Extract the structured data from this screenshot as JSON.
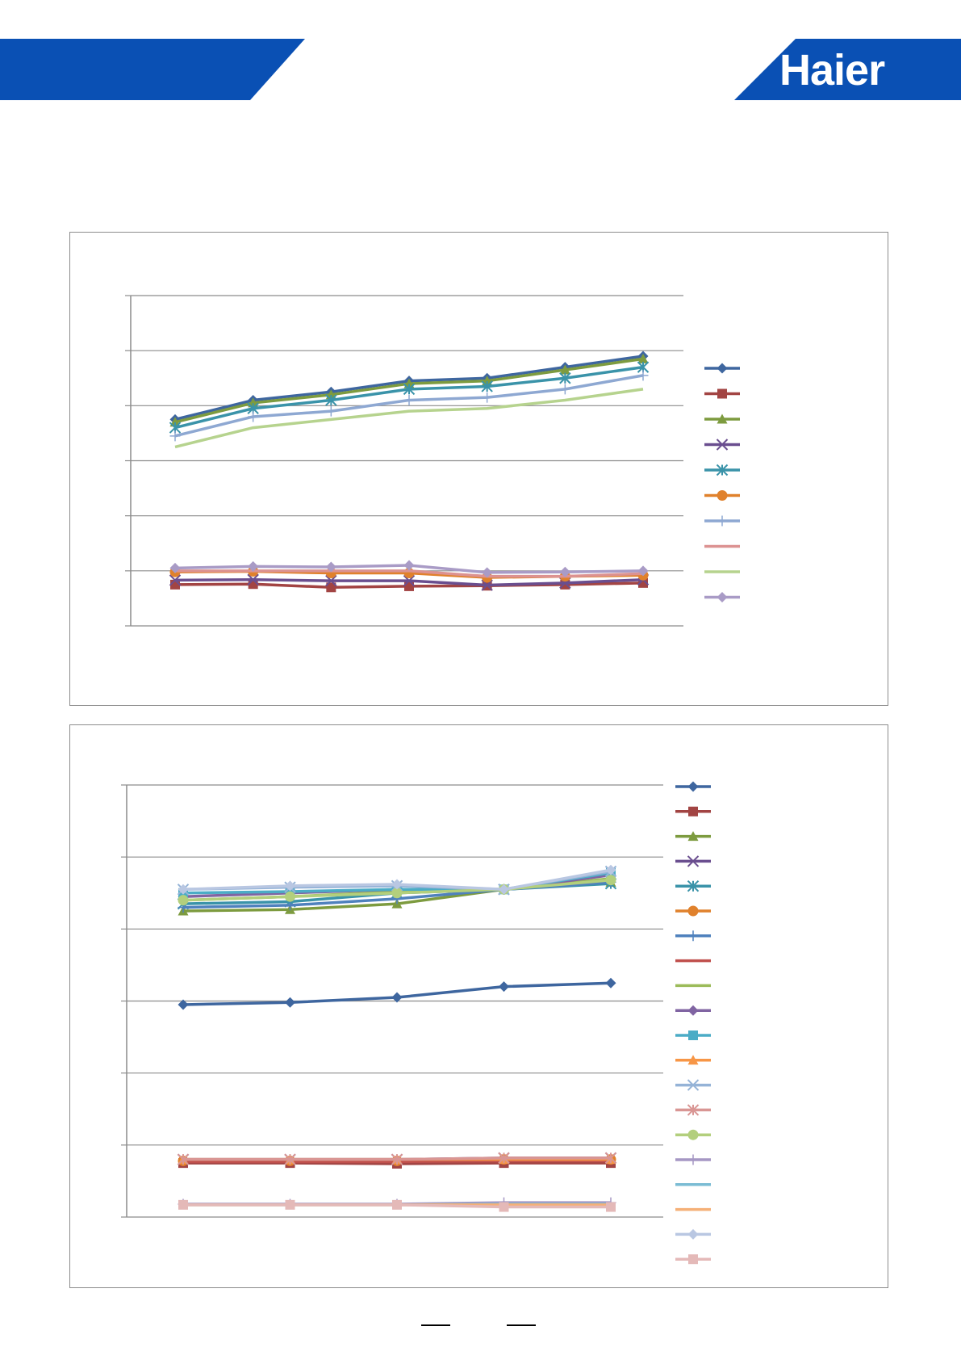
{
  "brand": {
    "name": "Haier",
    "color": "#0a50b4"
  },
  "chart_data": [
    {
      "type": "line",
      "x": [
        1,
        2,
        3,
        4,
        5,
        6,
        7
      ],
      "ylim": [
        0,
        6
      ],
      "grid": true,
      "legend": "right",
      "series": [
        {
          "color": "#3e669f",
          "marker": "diamond",
          "values": [
            3.75,
            4.1,
            4.25,
            4.45,
            4.5,
            4.7,
            4.9
          ]
        },
        {
          "color": "#a24443",
          "marker": "square",
          "values": [
            0.75,
            0.76,
            0.7,
            0.72,
            0.73,
            0.75,
            0.78
          ]
        },
        {
          "color": "#7d9b3f",
          "marker": "triangle",
          "values": [
            3.7,
            4.05,
            4.2,
            4.4,
            4.45,
            4.65,
            4.85
          ]
        },
        {
          "color": "#6a4e8f",
          "marker": "x",
          "values": [
            0.83,
            0.84,
            0.82,
            0.82,
            0.74,
            0.78,
            0.84
          ]
        },
        {
          "color": "#3a93a9",
          "marker": "star",
          "values": [
            3.6,
            3.95,
            4.1,
            4.3,
            4.35,
            4.5,
            4.7
          ]
        },
        {
          "color": "#e0812c",
          "marker": "circle",
          "values": [
            0.98,
            0.99,
            0.96,
            0.96,
            0.88,
            0.9,
            0.92
          ]
        },
        {
          "color": "#8ea8d2",
          "marker": "plus",
          "values": [
            3.45,
            3.8,
            3.9,
            4.1,
            4.15,
            4.3,
            4.55
          ]
        },
        {
          "color": "#dc9291",
          "marker": "none",
          "values": [
            1.0,
            1.0,
            1.0,
            1.0,
            0.9,
            0.9,
            0.95
          ]
        },
        {
          "color": "#b6d38e",
          "marker": "none",
          "values": [
            3.25,
            3.6,
            3.75,
            3.9,
            3.95,
            4.1,
            4.3
          ]
        },
        {
          "color": "#a99bc6",
          "marker": "diamond",
          "values": [
            1.05,
            1.08,
            1.07,
            1.1,
            0.97,
            0.98,
            1.0
          ]
        }
      ]
    },
    {
      "type": "line",
      "x": [
        1,
        2,
        3,
        4,
        5
      ],
      "ylim": [
        0,
        6
      ],
      "grid": true,
      "legend": "right",
      "series": [
        {
          "color": "#3e669f",
          "marker": "diamond",
          "values": [
            2.95,
            2.98,
            3.05,
            3.2,
            3.25
          ]
        },
        {
          "color": "#a24443",
          "marker": "square",
          "values": [
            0.75,
            0.75,
            0.74,
            0.75,
            0.75
          ]
        },
        {
          "color": "#7d9b3f",
          "marker": "triangle",
          "values": [
            4.25,
            4.27,
            4.35,
            4.55,
            4.65
          ]
        },
        {
          "color": "#6a4e8f",
          "marker": "x",
          "values": [
            0.8,
            0.8,
            0.8,
            0.82,
            0.82
          ]
        },
        {
          "color": "#3a93a9",
          "marker": "star",
          "values": [
            4.35,
            4.38,
            4.5,
            4.55,
            4.63
          ]
        },
        {
          "color": "#e0812c",
          "marker": "circle",
          "values": [
            0.78,
            0.78,
            0.78,
            0.8,
            0.8
          ]
        },
        {
          "color": "#4f81bd",
          "marker": "plus",
          "values": [
            4.3,
            4.33,
            4.42,
            4.55,
            4.65
          ]
        },
        {
          "color": "#c0504d",
          "marker": "none",
          "values": [
            0.77,
            0.77,
            0.77,
            0.78,
            0.78
          ]
        },
        {
          "color": "#9bbb59",
          "marker": "none",
          "values": [
            4.4,
            4.45,
            4.52,
            4.55,
            4.7
          ]
        },
        {
          "color": "#8064a2",
          "marker": "diamond",
          "values": [
            4.45,
            4.5,
            4.55,
            4.55,
            4.75
          ]
        },
        {
          "color": "#4bacc6",
          "marker": "square",
          "values": [
            4.5,
            4.52,
            4.55,
            4.55,
            4.78
          ]
        },
        {
          "color": "#f79646",
          "marker": "triangle",
          "values": [
            0.8,
            0.8,
            0.8,
            0.8,
            0.8
          ]
        },
        {
          "color": "#95b3d7",
          "marker": "x",
          "values": [
            4.55,
            4.58,
            4.6,
            4.55,
            4.8
          ]
        },
        {
          "color": "#d99694",
          "marker": "star",
          "values": [
            0.8,
            0.8,
            0.8,
            0.82,
            0.82
          ]
        },
        {
          "color": "#b3cf7d",
          "marker": "circle",
          "values": [
            4.4,
            4.45,
            4.5,
            4.55,
            4.68
          ]
        },
        {
          "color": "#a597c4",
          "marker": "plus",
          "values": [
            0.18,
            0.18,
            0.18,
            0.2,
            0.2
          ]
        },
        {
          "color": "#7bbcd4",
          "marker": "none",
          "values": [
            0.17,
            0.17,
            0.17,
            0.18,
            0.18
          ]
        },
        {
          "color": "#f5b077",
          "marker": "none",
          "values": [
            0.17,
            0.17,
            0.17,
            0.17,
            0.17
          ]
        },
        {
          "color": "#b9c7e2",
          "marker": "diamond",
          "values": [
            4.55,
            4.6,
            4.62,
            4.55,
            4.82
          ]
        },
        {
          "color": "#e4b9b8",
          "marker": "square",
          "values": [
            0.17,
            0.17,
            0.17,
            0.14,
            0.14
          ]
        }
      ]
    }
  ]
}
